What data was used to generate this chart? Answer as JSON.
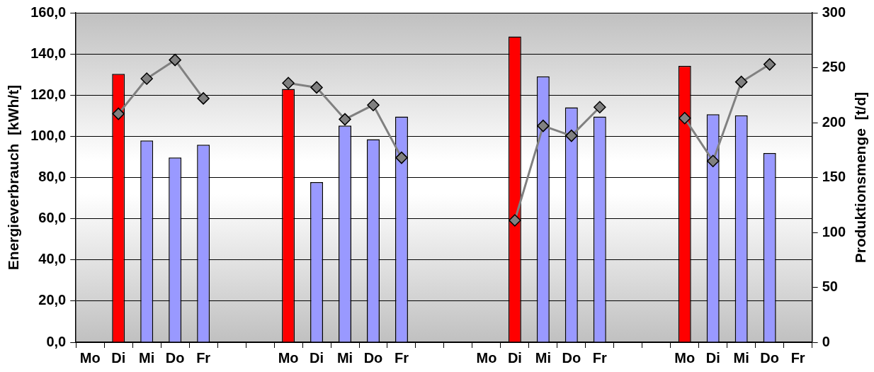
{
  "chart_data": {
    "type": "bar",
    "ylabel": "Energieverbrauch  [kWh/t]",
    "y2label": "Produktionsmenge  [t/d]",
    "categories": [
      "Mo",
      "Di",
      "Mi",
      "Do",
      "Fr",
      null,
      null,
      "Mo",
      "Di",
      "Mi",
      "Do",
      "Fr",
      null,
      null,
      "Mo",
      "Di",
      "Mi",
      "Do",
      "Fr",
      null,
      null,
      "Mo",
      "Di",
      "Mi",
      "Do",
      "Fr"
    ],
    "series": [
      {
        "color": "#9999ff",
        "colors": [
          "#9999ff",
          "#ff0000",
          "#9999ff",
          "#9999ff",
          "#9999ff",
          null,
          null,
          "#ff0000",
          "#9999ff",
          "#9999ff",
          "#9999ff",
          "#9999ff",
          null,
          null,
          "#9999ff",
          "#ff0000",
          "#9999ff",
          "#9999ff",
          "#9999ff",
          null,
          null,
          "#ff0000",
          "#9999ff",
          "#9999ff",
          "#9999ff",
          "#9999ff"
        ],
        "values": [
          null,
          130.3,
          98.0,
          89.7,
          95.9,
          null,
          null,
          123.0,
          77.8,
          105.2,
          98.6,
          109.6,
          null,
          null,
          null,
          148.5,
          129.1,
          114.1,
          109.6,
          null,
          null,
          134.2,
          110.7,
          110.2,
          91.9,
          null
        ]
      },
      {
        "type": "line",
        "axis": "y2",
        "color": "#808080",
        "marker": "diamond",
        "line_style": "solid",
        "values": [
          null,
          208,
          240,
          257,
          222,
          null,
          null,
          236,
          232,
          203,
          216,
          168,
          null,
          null,
          null,
          111,
          197,
          188,
          214,
          null,
          null,
          204,
          165,
          237,
          253,
          null
        ]
      }
    ],
    "ylim": [
      0,
      160
    ],
    "yticks": [
      {
        "value": 0,
        "label": "0,0"
      },
      {
        "value": 20,
        "label": "20,0"
      },
      {
        "value": 40,
        "label": "40,0"
      },
      {
        "value": 60,
        "label": "60,0"
      },
      {
        "value": 80,
        "label": "80,0"
      },
      {
        "value": 100,
        "label": "100,0"
      },
      {
        "value": 120,
        "label": "120,0"
      },
      {
        "value": 140,
        "label": "140,0"
      },
      {
        "value": 160,
        "label": "160,0"
      }
    ],
    "y2lim": [
      0,
      300
    ],
    "y2ticks": [
      0,
      50,
      100,
      150,
      200,
      250,
      300
    ],
    "grid": "y",
    "legend": false
  }
}
